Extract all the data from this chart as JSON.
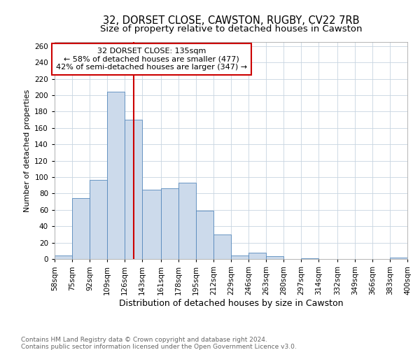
{
  "title1": "32, DORSET CLOSE, CAWSTON, RUGBY, CV22 7RB",
  "title2": "Size of property relative to detached houses in Cawston",
  "xlabel": "Distribution of detached houses by size in Cawston",
  "ylabel": "Number of detached properties",
  "bin_edges": [
    58,
    75,
    92,
    109,
    126,
    143,
    161,
    178,
    195,
    212,
    229,
    246,
    263,
    280,
    297,
    314,
    332,
    349,
    366,
    383,
    400
  ],
  "bar_heights": [
    4,
    74,
    97,
    204,
    170,
    85,
    86,
    93,
    59,
    30,
    4,
    8,
    3,
    0,
    1,
    0,
    0,
    0,
    0,
    2
  ],
  "bar_color": "#ccdaeb",
  "bar_edge_color": "#5588bb",
  "vline_x": 135,
  "vline_color": "#cc0000",
  "annotation_line1": "32 DORSET CLOSE: 135sqm",
  "annotation_line2": "← 58% of detached houses are smaller (477)",
  "annotation_line3": "42% of semi-detached houses are larger (347) →",
  "annotation_box_color": "white",
  "annotation_box_edge": "#cc0000",
  "yticks": [
    0,
    20,
    40,
    60,
    80,
    100,
    120,
    140,
    160,
    180,
    200,
    220,
    240,
    260
  ],
  "ylim": [
    0,
    265
  ],
  "footnote1": "Contains HM Land Registry data © Crown copyright and database right 2024.",
  "footnote2": "Contains public sector information licensed under the Open Government Licence v3.0.",
  "bg_color": "#ffffff",
  "grid_color": "#c8d4e0",
  "title1_fontsize": 10.5,
  "title2_fontsize": 9.5,
  "xlabel_fontsize": 9,
  "ylabel_fontsize": 8,
  "tick_fontsize": 7.5,
  "annot_fontsize": 8,
  "footnote_fontsize": 6.5
}
